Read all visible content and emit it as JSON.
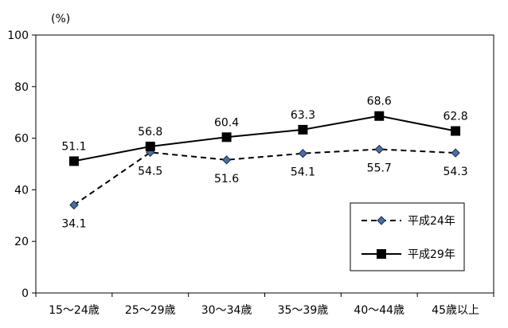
{
  "chart_data": {
    "type": "line",
    "ylabel": "(%)",
    "ylim": [
      0,
      100
    ],
    "yticks": [
      0,
      20,
      40,
      60,
      80,
      100
    ],
    "categories": [
      "15～24歳",
      "25～29歳",
      "30～34歳",
      "35～39歳",
      "40～44歳",
      "45歳以上"
    ],
    "series": [
      {
        "name": "平成24年",
        "values": [
          34.1,
          54.5,
          51.6,
          54.1,
          55.7,
          54.3
        ],
        "value_labels": [
          "34.1",
          "54.5",
          "51.6",
          "54.1",
          "55.7",
          "54.3"
        ],
        "line_style": "dashed",
        "marker": "diamond",
        "color": "#000000",
        "marker_color": "#4a6fa5",
        "label_position": "below"
      },
      {
        "name": "平成29年",
        "values": [
          51.1,
          56.8,
          60.4,
          63.3,
          68.6,
          62.8
        ],
        "value_labels": [
          "51.1",
          "56.8",
          "60.4",
          "63.3",
          "68.6",
          "62.8"
        ],
        "line_style": "solid",
        "marker": "square",
        "color": "#000000",
        "marker_color": "#000000",
        "label_position": "above"
      }
    ],
    "grid": false,
    "legend_position": "bottom-right"
  }
}
